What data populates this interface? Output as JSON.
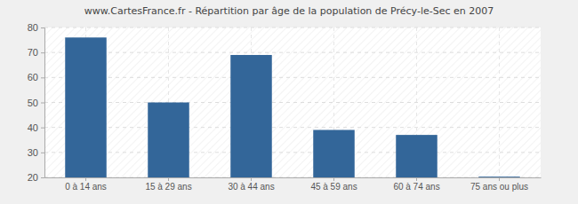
{
  "chart_data": {
    "type": "bar",
    "title": "www.CartesFrance.fr - Répartition par âge de la population de Précy-le-Sec en 2007",
    "categories": [
      "0 à 14 ans",
      "15 à 29 ans",
      "30 à 44 ans",
      "45 à 59 ans",
      "60 à 74 ans",
      "75 ans ou plus"
    ],
    "values": [
      76,
      50,
      69,
      39,
      37,
      20.3
    ],
    "color": "#336699",
    "ylim": [
      20,
      80
    ],
    "yticks": [
      20,
      30,
      40,
      50,
      60,
      70,
      80
    ],
    "grid": true
  }
}
